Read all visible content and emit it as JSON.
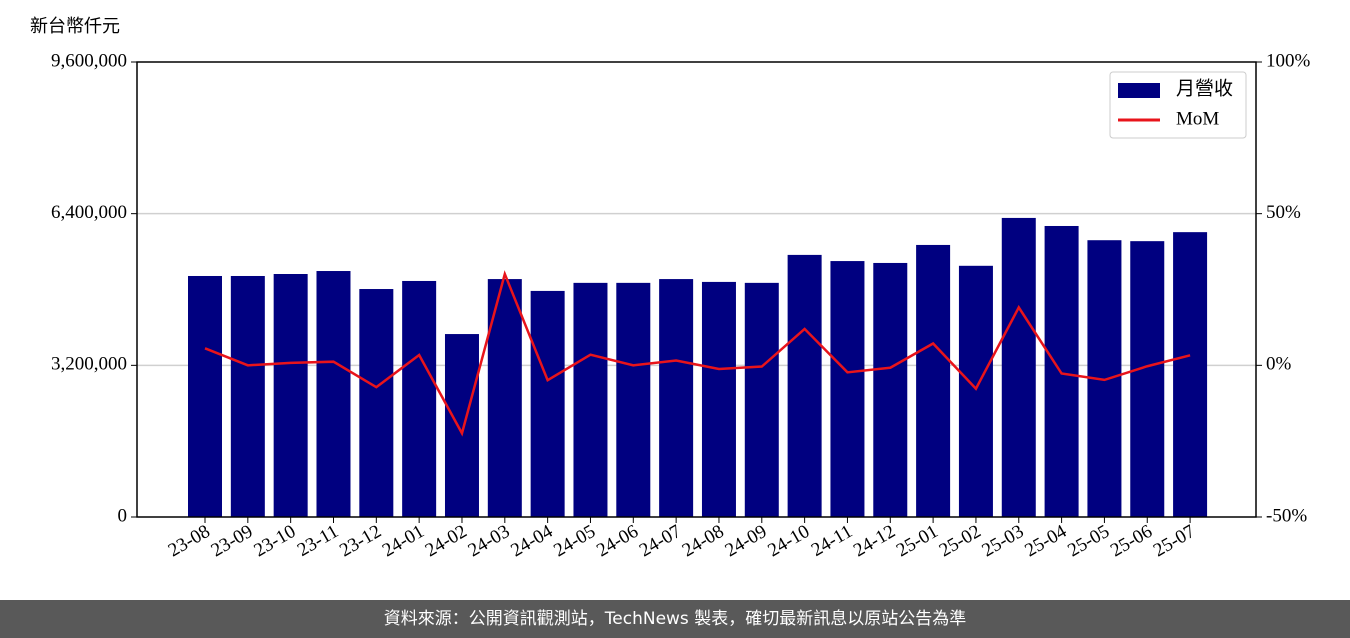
{
  "chart_data": {
    "type": "bar_line",
    "y_label": "新台幣仟元",
    "categories": [
      "23-08",
      "23-09",
      "23-10",
      "23-11",
      "23-12",
      "24-01",
      "24-02",
      "24-03",
      "24-04",
      "24-05",
      "24-06",
      "24-07",
      "24-08",
      "24-09",
      "24-10",
      "24-11",
      "24-12",
      "25-01",
      "25-02",
      "25-03",
      "25-04",
      "25-05",
      "25-06",
      "25-07"
    ],
    "series": [
      {
        "name": "月營收",
        "type": "bar",
        "color": "#000080",
        "values": [
          5085000,
          5085000,
          5127000,
          5190000,
          4810000,
          4980000,
          3860000,
          5020000,
          4770000,
          4940000,
          4940000,
          5020000,
          4960000,
          4940000,
          5530000,
          5400000,
          5360000,
          5740000,
          5300000,
          6310000,
          6140000,
          5840000,
          5820000,
          6010000
        ]
      },
      {
        "name": "MoM",
        "type": "line",
        "axis": "y2",
        "color": "#e8141b",
        "values": [
          5.6,
          0.0,
          0.8,
          1.2,
          -7.2,
          3.4,
          -22.4,
          30.1,
          -4.9,
          3.5,
          0.0,
          1.6,
          -1.2,
          -0.4,
          12.0,
          -2.3,
          -0.8,
          7.2,
          -7.7,
          19.1,
          -2.7,
          -4.8,
          -0.3,
          3.3
        ]
      }
    ],
    "ylim": [
      0,
      9600000
    ],
    "yticks": [
      0,
      {
        "value": 3200000,
        "label": "3,200,000"
      },
      {
        "value": 6400000,
        "label": "6,400,000"
      },
      {
        "value": 9600000,
        "label": "9,600,000"
      }
    ],
    "y2lim": [
      -50,
      100
    ],
    "y2ticks": [
      {
        "value": -50,
        "label": "-50%"
      },
      {
        "value": 0,
        "label": "0%"
      },
      {
        "value": 50,
        "label": "50%"
      },
      {
        "value": 100,
        "label": "100%"
      }
    ],
    "grid": true,
    "legend": "upper right"
  },
  "footer": "資料來源：公開資訊觀測站，TechNews 製表，確切最新訊息以原站公告為準"
}
